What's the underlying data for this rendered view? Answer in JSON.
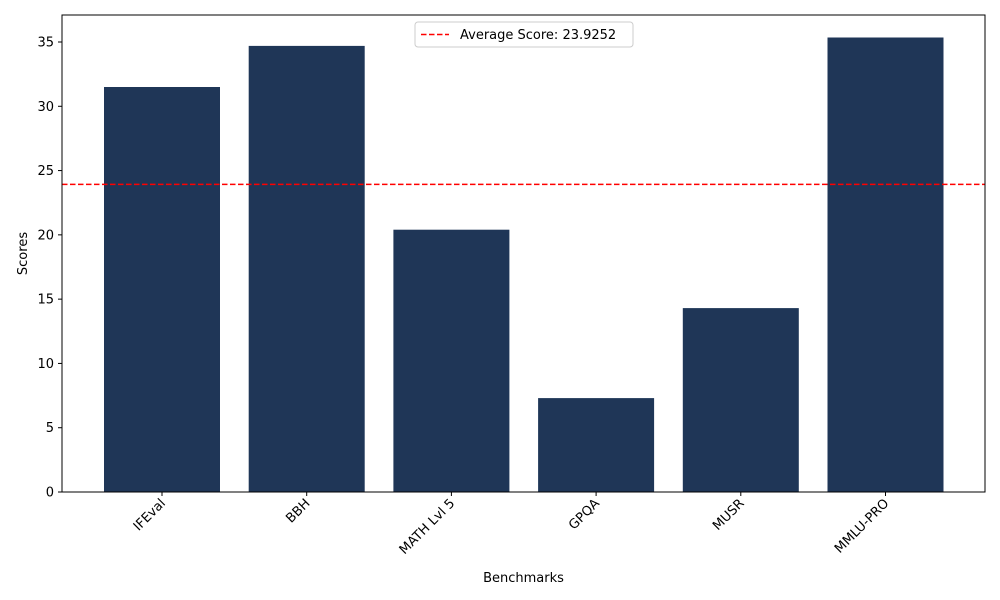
{
  "chart_data": {
    "type": "bar",
    "categories": [
      "IFEval",
      "BBH",
      "MATH Lvl 5",
      "GPQA",
      "MUSR",
      "MMLU-PRO"
    ],
    "values": [
      31.5,
      34.7,
      20.4,
      7.3,
      14.3,
      35.35
    ],
    "xlabel": "Benchmarks",
    "ylabel": "Scores",
    "ylim": [
      0,
      37.1
    ],
    "yticks": [
      0,
      5,
      10,
      15,
      20,
      25,
      30,
      35
    ],
    "average": 23.9252,
    "legend": {
      "label": "Average Score: 23.9252",
      "position": "upper-center"
    },
    "colors": {
      "bar": "#1f3657",
      "average_line": "#ff0000"
    },
    "grid": false
  }
}
